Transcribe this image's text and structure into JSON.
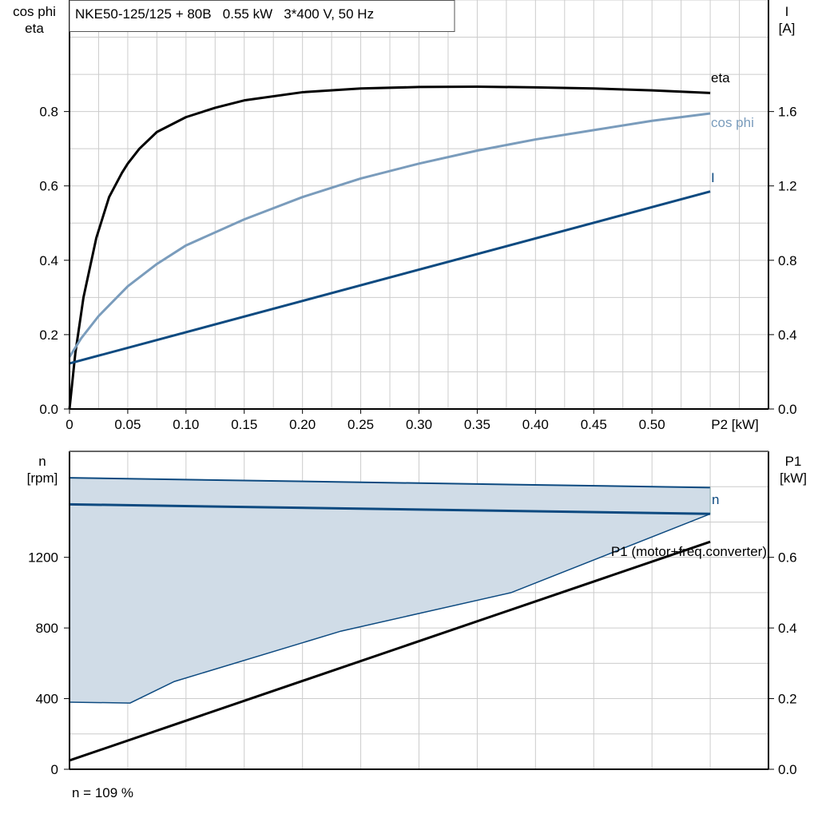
{
  "colors": {
    "eta": "#000000",
    "cos_phi": "#7a9cbc",
    "current": "#0d4a80",
    "n": "#0d4a80",
    "n_band_fill": "#d0dce7",
    "p1": "#000000",
    "grid": "#cccccc"
  },
  "chart_data": [
    {
      "type": "line",
      "title": "NKE50-125/125 + 80B   0.55 kW   3*400 V, 50 Hz",
      "xlabel": "P2 [kW]",
      "ylabel_left": [
        "cos phi",
        "eta"
      ],
      "ylabel_right": [
        "I",
        "[A]"
      ],
      "xlim": [
        0,
        0.6
      ],
      "ylim_left": [
        0,
        1.1
      ],
      "ylim_right": [
        0,
        2.2
      ],
      "x_ticks": [
        "0",
        "0.05",
        "0.10",
        "0.15",
        "0.20",
        "0.25",
        "0.30",
        "0.35",
        "0.40",
        "0.45",
        "0.50"
      ],
      "x_tick_values": [
        0,
        0.05,
        0.1,
        0.15,
        0.2,
        0.25,
        0.3,
        0.35,
        0.4,
        0.45,
        0.5
      ],
      "y_left_ticks": [
        "0.0",
        "0.2",
        "0.4",
        "0.6",
        "0.8"
      ],
      "y_left_tick_values": [
        0,
        0.2,
        0.4,
        0.6,
        0.8
      ],
      "y_right_ticks": [
        "0.0",
        "0.4",
        "0.8",
        "1.2",
        "1.6"
      ],
      "y_right_tick_values": [
        0,
        0.4,
        0.8,
        1.2,
        1.6
      ],
      "grid": true,
      "series": [
        {
          "name": "eta",
          "axis": "left",
          "x": [
            0,
            0.005,
            0.012,
            0.023,
            0.034,
            0.045,
            0.05,
            0.06,
            0.075,
            0.1,
            0.125,
            0.15,
            0.2,
            0.25,
            0.3,
            0.35,
            0.4,
            0.45,
            0.5,
            0.55
          ],
          "y": [
            0,
            0.15,
            0.3,
            0.46,
            0.57,
            0.635,
            0.66,
            0.7,
            0.745,
            0.785,
            0.81,
            0.83,
            0.852,
            0.862,
            0.866,
            0.867,
            0.865,
            0.862,
            0.857,
            0.85
          ]
        },
        {
          "name": "cos phi",
          "axis": "left",
          "x": [
            0,
            0.01,
            0.025,
            0.05,
            0.075,
            0.1,
            0.15,
            0.2,
            0.25,
            0.3,
            0.35,
            0.4,
            0.45,
            0.5,
            0.55
          ],
          "y": [
            0.14,
            0.19,
            0.25,
            0.33,
            0.39,
            0.44,
            0.51,
            0.57,
            0.62,
            0.66,
            0.695,
            0.725,
            0.75,
            0.775,
            0.795
          ]
        },
        {
          "name": "I",
          "axis": "right",
          "x": [
            0,
            0.55
          ],
          "y": [
            0.245,
            1.17
          ]
        }
      ]
    },
    {
      "type": "line",
      "ylabel_left": [
        "n",
        "[rpm]"
      ],
      "ylabel_right": [
        "P1",
        "[kW]"
      ],
      "xlim": [
        0,
        0.6
      ],
      "ylim_left": [
        0,
        1800
      ],
      "ylim_right": [
        0,
        0.9
      ],
      "y_left_ticks": [
        "0",
        "400",
        "800",
        "1200"
      ],
      "y_left_tick_values": [
        0,
        400,
        800,
        1200
      ],
      "y_right_ticks": [
        "0.0",
        "0.2",
        "0.4",
        "0.6"
      ],
      "y_right_tick_values": [
        0,
        0.2,
        0.4,
        0.6
      ],
      "grid": true,
      "n_band": {
        "upper": {
          "x": [
            0,
            0.55
          ],
          "y": [
            1650,
            1595
          ]
        },
        "lower": {
          "x": [
            0,
            0.052,
            0.09,
            0.233,
            0.379,
            0.55
          ],
          "y": [
            380,
            375,
            497,
            782,
            1000,
            1446
          ]
        }
      },
      "series": [
        {
          "name": "n",
          "axis": "left",
          "x": [
            0,
            0.55
          ],
          "y": [
            1500,
            1446
          ]
        },
        {
          "name": "P1 (motor+freq.converter)",
          "axis": "right",
          "x": [
            0,
            0.55
          ],
          "y": [
            0.025,
            0.644
          ]
        }
      ],
      "annotation": "n = 109 %"
    }
  ]
}
